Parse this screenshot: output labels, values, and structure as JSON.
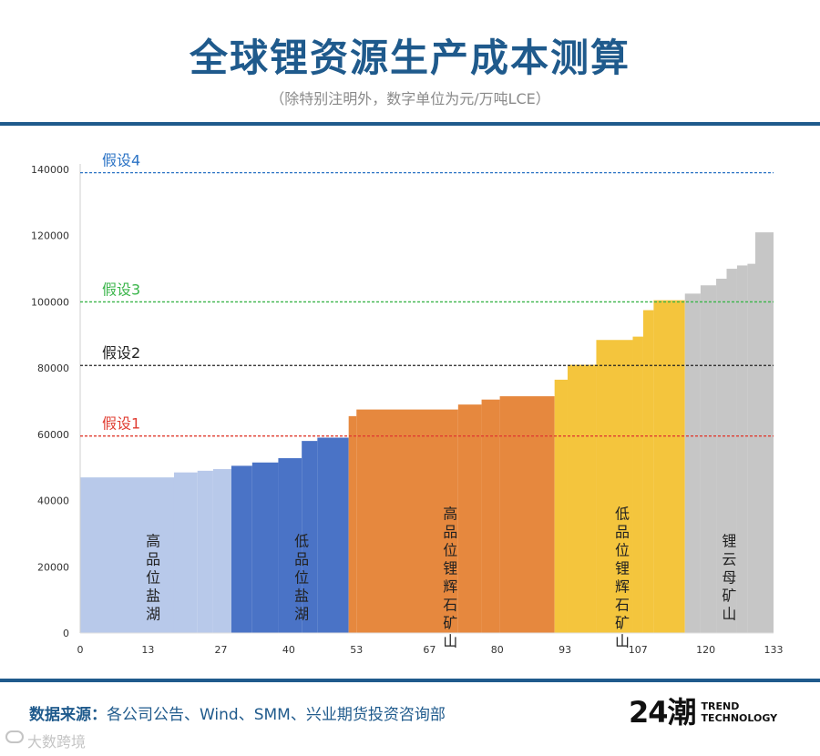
{
  "header": {
    "title": "全球锂资源生产成本测算",
    "subtitle": "（除特别注明外，数字单位为元/万吨LCE）"
  },
  "footer": {
    "source_label": "数据来源：",
    "source_text": "各公司公告、Wind、SMM、兴业期货投资咨询部",
    "brand_mark": "24潮",
    "brand_line1": "TREND",
    "brand_line2": "TECHNOLOGY",
    "watermark": "大数跨境"
  },
  "chart_data": {
    "type": "bar",
    "subtype": "cost-curve",
    "xlim": [
      0,
      133
    ],
    "ylim": [
      0,
      140000
    ],
    "xticks": [
      0,
      13,
      27,
      40,
      53,
      67,
      80,
      93,
      107,
      120,
      133
    ],
    "yticks": [
      0,
      20000,
      40000,
      60000,
      80000,
      100000,
      120000,
      140000
    ],
    "grid": false,
    "series": [
      {
        "name": "高品位盐湖",
        "color": "#b8c9ea",
        "steps": [
          {
            "x0": 0,
            "x1": 18,
            "y": 47000
          },
          {
            "x0": 18,
            "x1": 22.5,
            "y": 48500
          },
          {
            "x0": 22.5,
            "x1": 25.5,
            "y": 49000
          },
          {
            "x0": 25.5,
            "x1": 29,
            "y": 49500
          }
        ]
      },
      {
        "name": "低品位盐湖",
        "color": "#4a73c6",
        "steps": [
          {
            "x0": 29,
            "x1": 33,
            "y": 50500
          },
          {
            "x0": 33,
            "x1": 38,
            "y": 51500
          },
          {
            "x0": 38,
            "x1": 42.5,
            "y": 52800
          },
          {
            "x0": 42.5,
            "x1": 45.5,
            "y": 58000
          },
          {
            "x0": 45.5,
            "x1": 51.5,
            "y": 59000
          }
        ]
      },
      {
        "name": "高品位锂辉石矿山",
        "color": "#e6883e",
        "steps": [
          {
            "x0": 51.5,
            "x1": 53,
            "y": 65500
          },
          {
            "x0": 53,
            "x1": 72.5,
            "y": 67500
          },
          {
            "x0": 72.5,
            "x1": 77,
            "y": 69000
          },
          {
            "x0": 77,
            "x1": 80.5,
            "y": 70500
          },
          {
            "x0": 80.5,
            "x1": 91,
            "y": 71500
          }
        ]
      },
      {
        "name": "低品位锂辉石矿山",
        "color": "#f4c53d",
        "steps": [
          {
            "x0": 91,
            "x1": 93.5,
            "y": 76500
          },
          {
            "x0": 93.5,
            "x1": 99,
            "y": 81000
          },
          {
            "x0": 99,
            "x1": 106,
            "y": 88500
          },
          {
            "x0": 106,
            "x1": 108,
            "y": 89500
          },
          {
            "x0": 108,
            "x1": 110,
            "y": 97500
          },
          {
            "x0": 110,
            "x1": 116,
            "y": 100500
          }
        ]
      },
      {
        "name": "锂云母矿山",
        "color": "#c6c6c6",
        "steps": [
          {
            "x0": 116,
            "x1": 119,
            "y": 102500
          },
          {
            "x0": 119,
            "x1": 122,
            "y": 105000
          },
          {
            "x0": 122,
            "x1": 124,
            "y": 107000
          },
          {
            "x0": 124,
            "x1": 126,
            "y": 110000
          },
          {
            "x0": 126,
            "x1": 128,
            "y": 111000
          },
          {
            "x0": 128,
            "x1": 129.5,
            "y": 111500
          },
          {
            "x0": 129.5,
            "x1": 133,
            "y": 121000
          }
        ]
      }
    ],
    "segment_labels": [
      {
        "text": "高品位盐湖",
        "x": 14
      },
      {
        "text": "低品位盐湖",
        "x": 42.5
      },
      {
        "text": "高品位锂辉石矿山",
        "x": 71
      },
      {
        "text": "低品位锂辉石矿山",
        "x": 104
      },
      {
        "text": "锂云母矿山",
        "x": 124.5
      }
    ],
    "reference_lines": [
      {
        "label": "假设1",
        "y": 59500,
        "color": "#e03c31"
      },
      {
        "label": "假设2",
        "y": 80800,
        "color": "#222222"
      },
      {
        "label": "假设3",
        "y": 100000,
        "color": "#3ab54a"
      },
      {
        "label": "假设4",
        "y": 139000,
        "color": "#2b73c5"
      }
    ]
  }
}
